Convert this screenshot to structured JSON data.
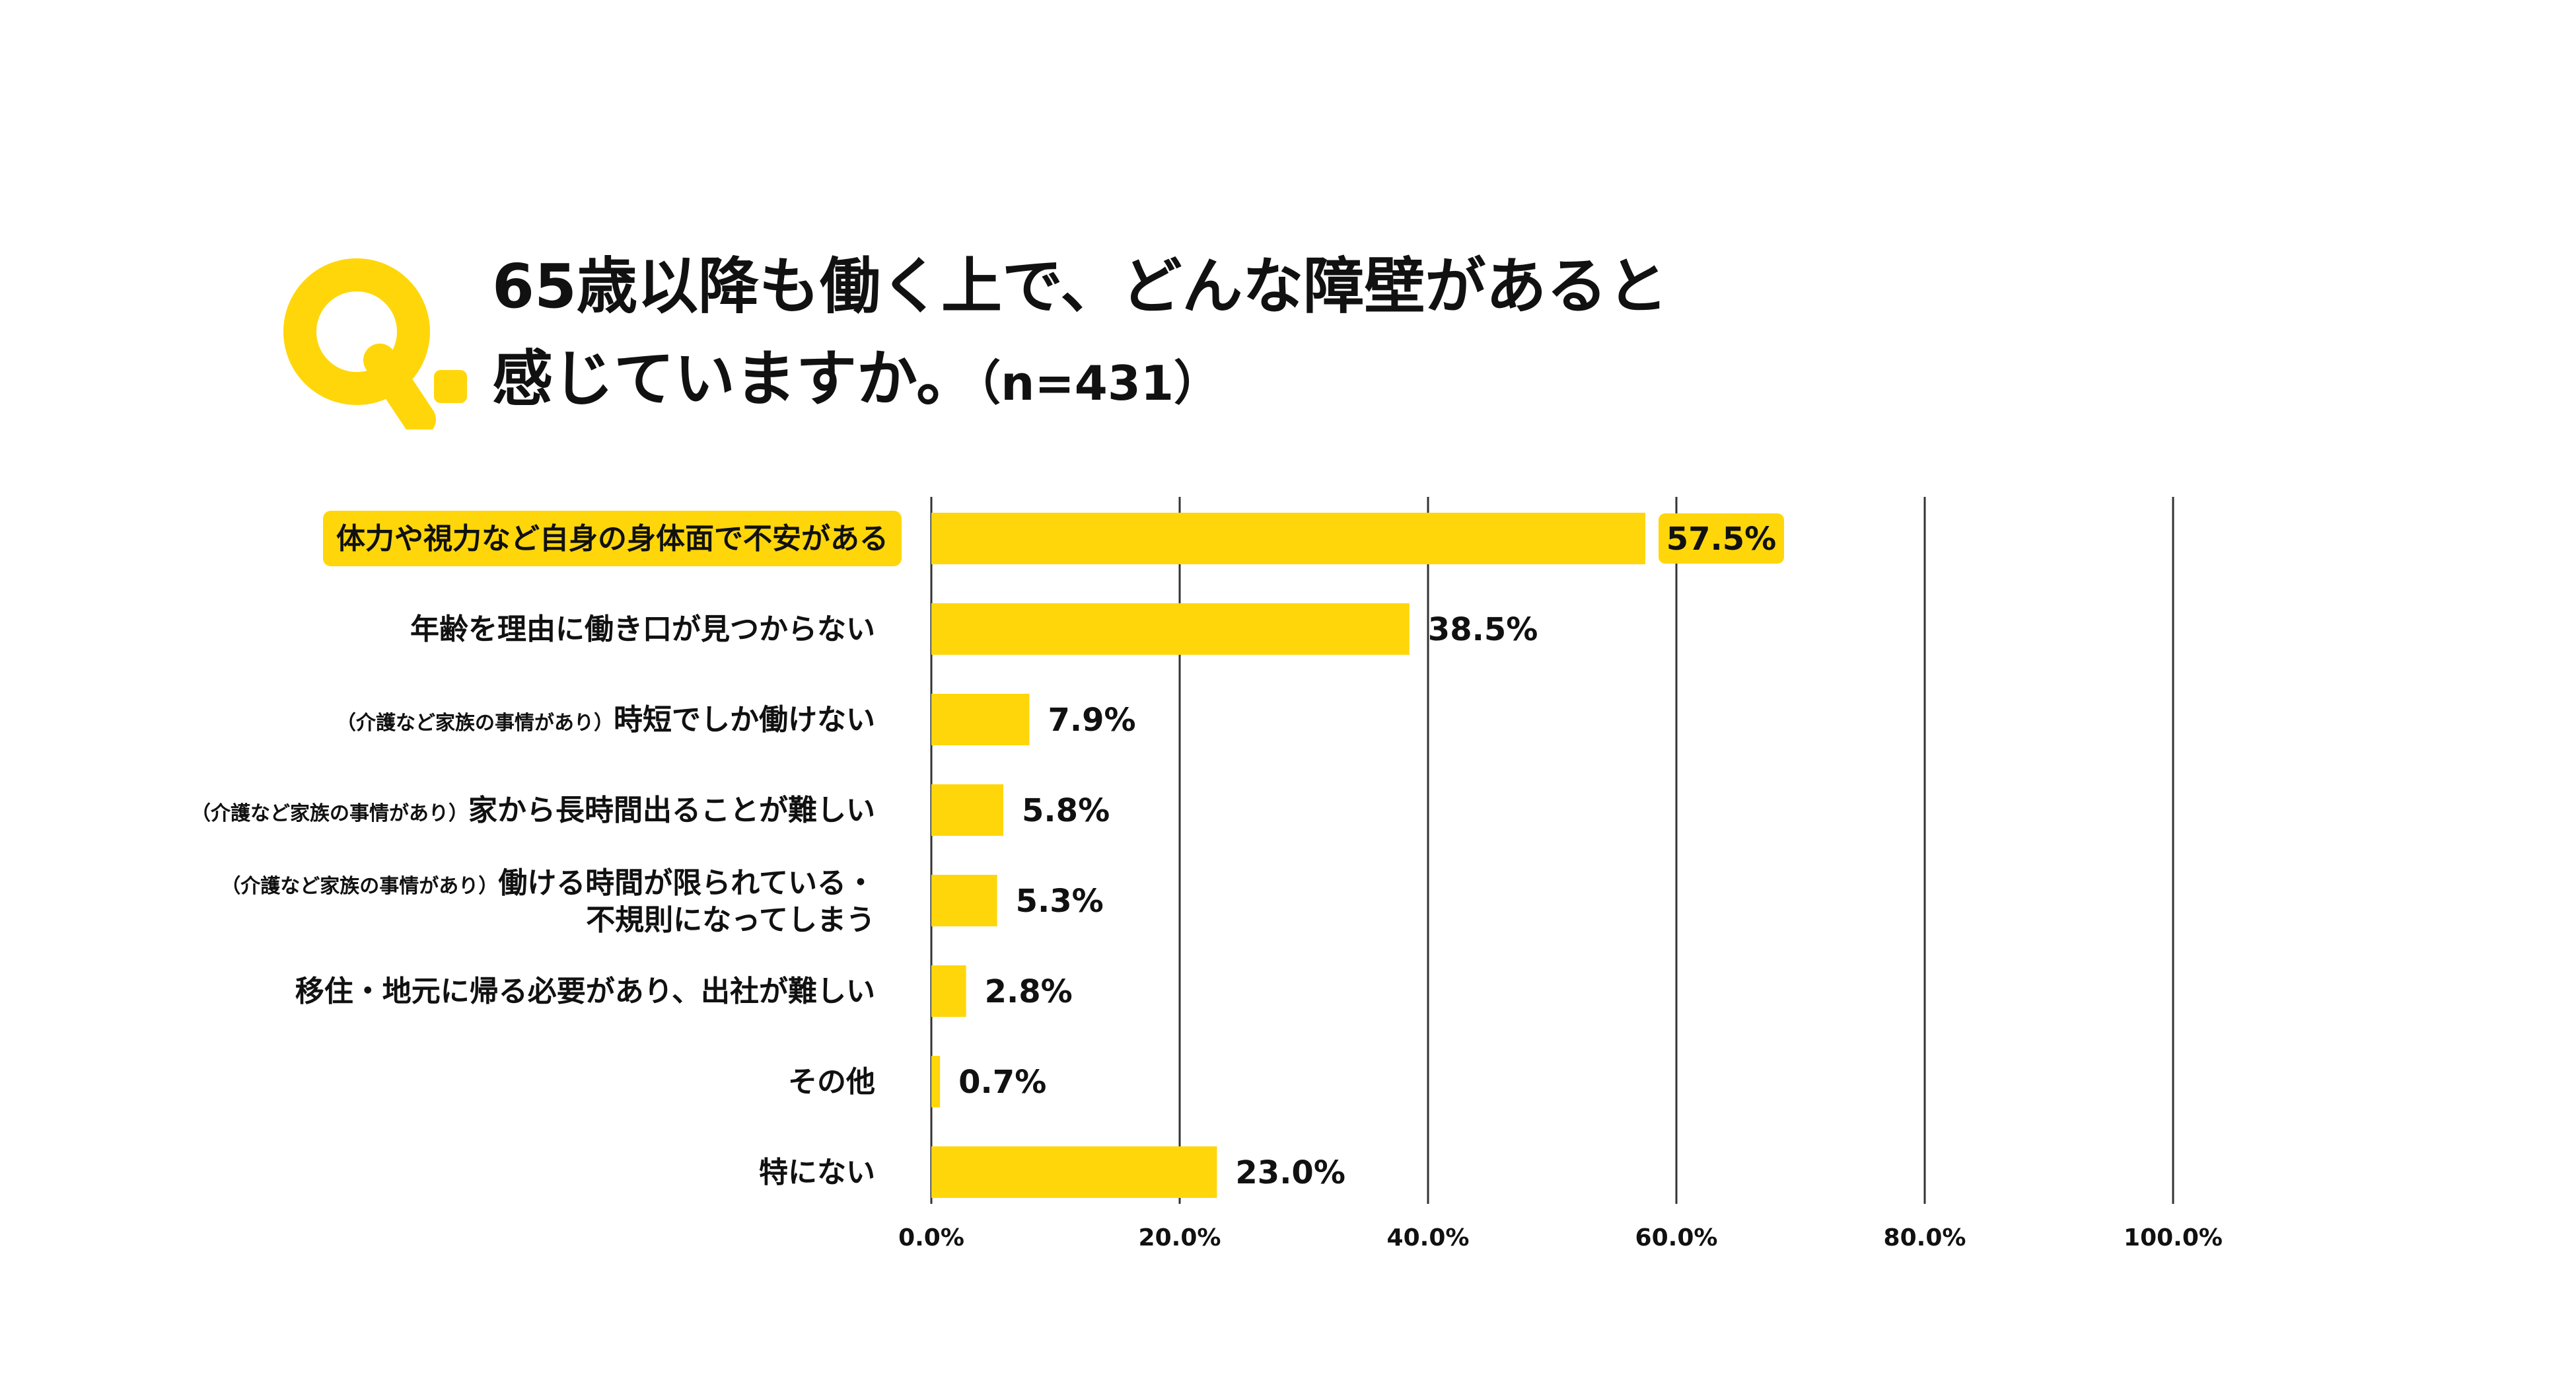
{
  "title": {
    "line1": "65歳以降も働く上で、どんな障壁があると",
    "line2": "感じていますか。",
    "n_label": "（n=431）"
  },
  "colors": {
    "accent": "#FFD60A",
    "text": "#111111",
    "grid": "#333333"
  },
  "chart_data": {
    "type": "bar",
    "orientation": "horizontal",
    "title": "65歳以降も働く上で、どんな障壁があると感じていますか。（n=431）",
    "categories": [
      {
        "prefix": "",
        "lines": [
          "体力や視力など自身の身体面で不安がある"
        ],
        "highlight": true
      },
      {
        "prefix": "",
        "lines": [
          "年齢を理由に働き口が見つからない"
        ],
        "highlight": false
      },
      {
        "prefix": "（介護など家族の事情があり）",
        "lines": [
          "時短でしか働けない"
        ],
        "highlight": false
      },
      {
        "prefix": "（介護など家族の事情があり）",
        "lines": [
          "家から長時間出ることが難しい"
        ],
        "highlight": false
      },
      {
        "prefix": "（介護など家族の事情があり）",
        "lines": [
          "働ける時間が限られている・",
          "不規則になってしまう"
        ],
        "highlight": false
      },
      {
        "prefix": "",
        "lines": [
          "移住・地元に帰る必要があり、出社が難しい"
        ],
        "highlight": false
      },
      {
        "prefix": "",
        "lines": [
          "その他"
        ],
        "highlight": false
      },
      {
        "prefix": "",
        "lines": [
          "特にない"
        ],
        "highlight": false
      }
    ],
    "values": [
      57.5,
      38.5,
      7.9,
      5.8,
      5.3,
      2.8,
      0.7,
      23.0
    ],
    "value_labels": [
      "57.5%",
      "38.5%",
      "7.9%",
      "5.8%",
      "5.3%",
      "2.8%",
      "0.7%",
      "23.0%"
    ],
    "xlim": [
      0,
      100
    ],
    "xticks": [
      0,
      20,
      40,
      60,
      80,
      100
    ],
    "xtick_labels": [
      "0.0%",
      "20.0%",
      "40.0%",
      "60.0%",
      "80.0%",
      "100.0%"
    ],
    "grid": true,
    "xlabel": "",
    "ylabel": ""
  }
}
